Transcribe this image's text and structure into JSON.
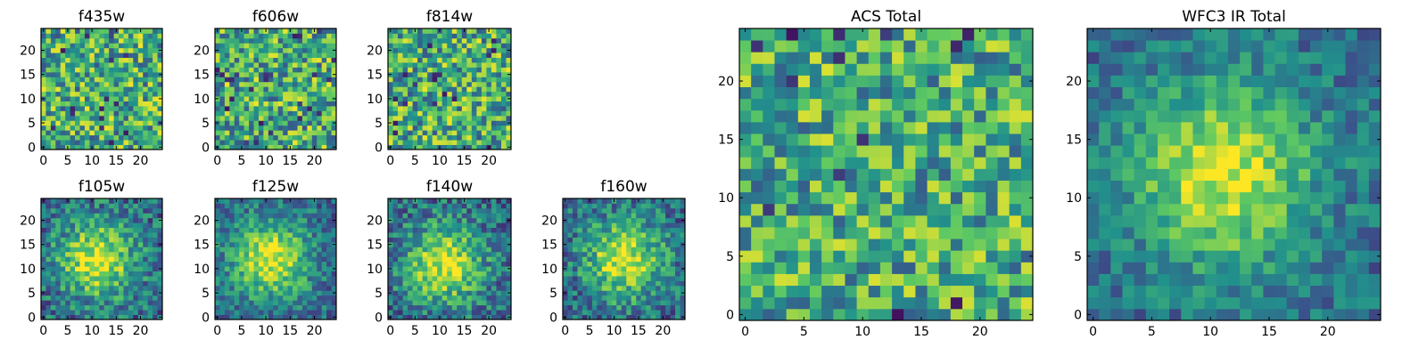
{
  "figure": {
    "colormap": "viridis",
    "colormap_stops": [
      "#440154",
      "#3b528b",
      "#21918c",
      "#5ec962",
      "#fde725"
    ]
  },
  "chart_data": [
    {
      "type": "heatmap",
      "title": "f435w",
      "grid_size": 25,
      "x_ticks": [
        0,
        5,
        10,
        15,
        20
      ],
      "y_ticks": [
        0,
        5,
        10,
        15,
        20
      ],
      "xlim": [
        -0.5,
        24.5
      ],
      "ylim": [
        -0.5,
        24.5
      ],
      "structure": "noise",
      "noise": 0.55,
      "seed": 11
    },
    {
      "type": "heatmap",
      "title": "f606w",
      "grid_size": 25,
      "x_ticks": [
        0,
        5,
        10,
        15,
        20
      ],
      "y_ticks": [
        0,
        5,
        10,
        15,
        20
      ],
      "xlim": [
        -0.5,
        24.5
      ],
      "ylim": [
        -0.5,
        24.5
      ],
      "structure": "noise",
      "noise": 0.55,
      "seed": 23
    },
    {
      "type": "heatmap",
      "title": "f814w",
      "grid_size": 25,
      "x_ticks": [
        0,
        5,
        10,
        15,
        20
      ],
      "y_ticks": [
        0,
        5,
        10,
        15,
        20
      ],
      "xlim": [
        -0.5,
        24.5
      ],
      "ylim": [
        -0.5,
        24.5
      ],
      "structure": "noise",
      "noise": 0.55,
      "seed": 37
    },
    {
      "type": "heatmap",
      "title": "f105w",
      "grid_size": 25,
      "x_ticks": [
        0,
        5,
        10,
        15,
        20
      ],
      "y_ticks": [
        0,
        5,
        10,
        15,
        20
      ],
      "xlim": [
        -0.5,
        24.5
      ],
      "ylim": [
        -0.5,
        24.5
      ],
      "structure": "peak",
      "peak_x": 11,
      "peak_y": 12,
      "noise": 0.35,
      "seed": 41
    },
    {
      "type": "heatmap",
      "title": "f125w",
      "grid_size": 25,
      "x_ticks": [
        0,
        5,
        10,
        15,
        20
      ],
      "y_ticks": [
        0,
        5,
        10,
        15,
        20
      ],
      "xlim": [
        -0.5,
        24.5
      ],
      "ylim": [
        -0.5,
        24.5
      ],
      "structure": "peak",
      "peak_x": 11,
      "peak_y": 12,
      "noise": 0.3,
      "seed": 53
    },
    {
      "type": "heatmap",
      "title": "f140w",
      "grid_size": 25,
      "x_ticks": [
        0,
        5,
        10,
        15,
        20
      ],
      "y_ticks": [
        0,
        5,
        10,
        15,
        20
      ],
      "xlim": [
        -0.5,
        24.5
      ],
      "ylim": [
        -0.5,
        24.5
      ],
      "structure": "peak",
      "peak_x": 11,
      "peak_y": 11,
      "noise": 0.35,
      "seed": 67
    },
    {
      "type": "heatmap",
      "title": "f160w",
      "grid_size": 25,
      "x_ticks": [
        0,
        5,
        10,
        15,
        20
      ],
      "y_ticks": [
        0,
        5,
        10,
        15,
        20
      ],
      "xlim": [
        -0.5,
        24.5
      ],
      "ylim": [
        -0.5,
        24.5
      ],
      "structure": "peak",
      "peak_x": 12,
      "peak_y": 12,
      "noise": 0.35,
      "seed": 79
    },
    {
      "type": "heatmap",
      "title": "ACS Total",
      "grid_size": 25,
      "x_ticks": [
        0,
        5,
        10,
        15,
        20
      ],
      "y_ticks": [
        0,
        5,
        10,
        15,
        20
      ],
      "xlim": [
        -0.5,
        24.5
      ],
      "ylim": [
        -0.5,
        24.5
      ],
      "structure": "noise",
      "noise": 0.5,
      "seed": 97
    },
    {
      "type": "heatmap",
      "title": "WFC3 IR Total",
      "grid_size": 25,
      "x_ticks": [
        0,
        5,
        10,
        15,
        20
      ],
      "y_ticks": [
        0,
        5,
        10,
        15,
        20
      ],
      "xlim": [
        -0.5,
        24.5
      ],
      "ylim": [
        -0.5,
        24.5
      ],
      "structure": "peak",
      "peak_x": 11,
      "peak_y": 12,
      "noise": 0.25,
      "seed": 103
    }
  ]
}
